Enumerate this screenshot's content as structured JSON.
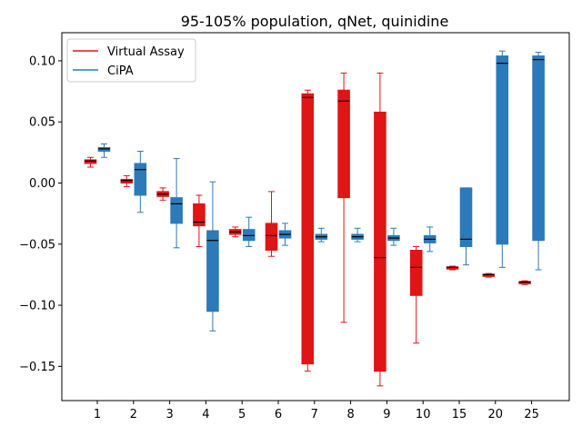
{
  "chart_data": {
    "type": "box",
    "title": "95-105% population, qNet, quinidine",
    "xlabel": "",
    "ylabel": "",
    "categories": [
      "1",
      "2",
      "3",
      "4",
      "5",
      "6",
      "7",
      "8",
      "9",
      "10",
      "15",
      "20",
      "25"
    ],
    "ylim": [
      -0.178,
      0.123
    ],
    "yticks": [
      0.1,
      0.05,
      0.0,
      -0.05,
      -0.1,
      -0.15
    ],
    "ytick_labels": [
      "0.10",
      "0.05",
      "0.00",
      "−0.05",
      "−0.10",
      "−0.15"
    ],
    "grid": false,
    "legend_position": "top-left",
    "series": [
      {
        "name": "Virtual Assay",
        "color": "#e01515",
        "boxes": [
          {
            "min": 0.013,
            "q1": 0.016,
            "median": 0.018,
            "q3": 0.019,
            "max": 0.021
          },
          {
            "min": -0.003,
            "q1": 0.0,
            "median": 0.002,
            "q3": 0.003,
            "max": 0.006
          },
          {
            "min": -0.014,
            "q1": -0.011,
            "median": -0.009,
            "q3": -0.007,
            "max": -0.004
          },
          {
            "min": -0.052,
            "q1": -0.035,
            "median": -0.032,
            "q3": -0.017,
            "max": -0.01
          },
          {
            "min": -0.044,
            "q1": -0.042,
            "median": -0.04,
            "q3": -0.038,
            "max": -0.036
          },
          {
            "min": -0.06,
            "q1": -0.055,
            "median": -0.043,
            "q3": -0.033,
            "max": -0.007
          },
          {
            "min": -0.154,
            "q1": -0.148,
            "median": 0.07,
            "q3": 0.073,
            "max": 0.076
          },
          {
            "min": -0.114,
            "q1": -0.012,
            "median": 0.067,
            "q3": 0.076,
            "max": 0.09
          },
          {
            "min": -0.166,
            "q1": -0.154,
            "median": -0.061,
            "q3": 0.058,
            "max": 0.09
          },
          {
            "min": -0.131,
            "q1": -0.092,
            "median": -0.069,
            "q3": -0.055,
            "max": -0.052
          },
          {
            "min": -0.071,
            "q1": -0.07,
            "median": -0.069,
            "q3": -0.069,
            "max": -0.068
          },
          {
            "min": -0.077,
            "q1": -0.076,
            "median": -0.075,
            "q3": -0.075,
            "max": -0.074
          },
          {
            "min": -0.083,
            "q1": -0.082,
            "median": -0.081,
            "q3": -0.081,
            "max": -0.08
          }
        ]
      },
      {
        "name": "CiPA",
        "color": "#2b7bba",
        "boxes": [
          {
            "min": 0.021,
            "q1": 0.026,
            "median": 0.028,
            "q3": 0.029,
            "max": 0.032
          },
          {
            "min": -0.024,
            "q1": -0.01,
            "median": 0.011,
            "q3": 0.016,
            "max": 0.026
          },
          {
            "min": -0.053,
            "q1": -0.033,
            "median": -0.017,
            "q3": -0.012,
            "max": 0.02
          },
          {
            "min": -0.121,
            "q1": -0.105,
            "median": -0.047,
            "q3": -0.039,
            "max": 0.001
          },
          {
            "min": -0.052,
            "q1": -0.047,
            "median": -0.043,
            "q3": -0.038,
            "max": -0.028
          },
          {
            "min": -0.051,
            "q1": -0.045,
            "median": -0.042,
            "q3": -0.039,
            "max": -0.033
          },
          {
            "min": -0.048,
            "q1": -0.046,
            "median": -0.044,
            "q3": -0.042,
            "max": -0.037
          },
          {
            "min": -0.048,
            "q1": -0.046,
            "median": -0.044,
            "q3": -0.042,
            "max": -0.037
          },
          {
            "min": -0.051,
            "q1": -0.047,
            "median": -0.045,
            "q3": -0.043,
            "max": -0.037
          },
          {
            "min": -0.056,
            "q1": -0.049,
            "median": -0.046,
            "q3": -0.043,
            "max": -0.036
          },
          {
            "min": -0.067,
            "q1": -0.052,
            "median": -0.046,
            "q3": -0.004,
            "max": -0.004
          },
          {
            "min": -0.069,
            "q1": -0.05,
            "median": 0.098,
            "q3": 0.104,
            "max": 0.108
          },
          {
            "min": -0.071,
            "q1": -0.047,
            "median": 0.101,
            "q3": 0.104,
            "max": 0.107
          }
        ]
      }
    ]
  }
}
